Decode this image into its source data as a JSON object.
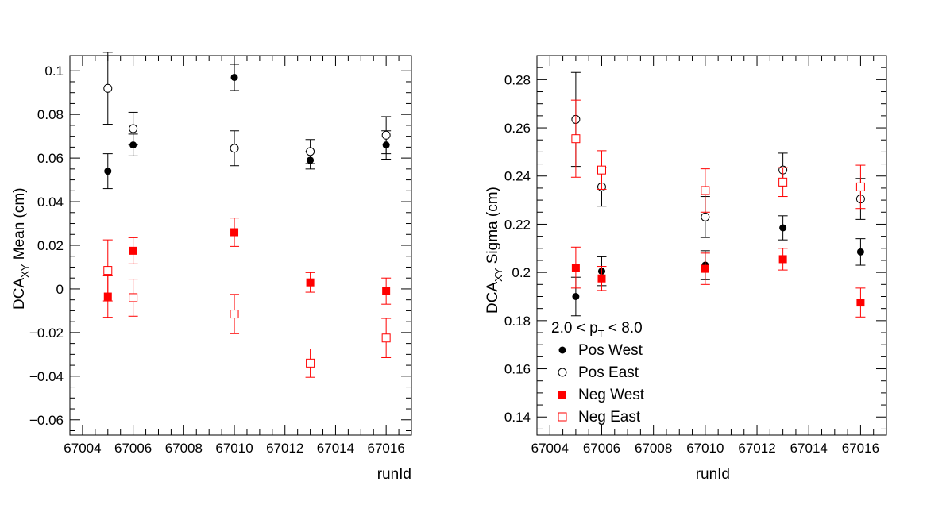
{
  "colors": {
    "pos": "#000000",
    "neg": "#ff0000"
  },
  "chart_data": [
    {
      "type": "scatter",
      "xlabel": "runId",
      "ylabel_main": "DCA",
      "ylabel_sub": "XY",
      "ylabel_rest": " Mean (cm)",
      "xlim": [
        67003.5,
        67017
      ],
      "ylim": [
        -0.067,
        0.107
      ],
      "x_ticks": [
        67004,
        67006,
        67008,
        67010,
        67012,
        67014,
        67016
      ],
      "x_tick_labels": [
        "67004",
        "67006",
        "67008",
        "67010",
        "67012",
        "67014",
        "67016"
      ],
      "y_ticks": [
        -0.06,
        -0.04,
        -0.02,
        0,
        0.02,
        0.04,
        0.06,
        0.08,
        0.1
      ],
      "y_tick_labels": [
        "−0.06",
        "−0.04",
        "−0.02",
        "0",
        "0.02",
        "0.04",
        "0.06",
        "0.08",
        "0.1"
      ],
      "series": [
        {
          "name": "Pos West",
          "marker": "filled-circle",
          "color": "#000000",
          "x": [
            67005,
            67006,
            67010,
            67013,
            67016
          ],
          "y": [
            0.054,
            0.066,
            0.097,
            0.059,
            0.066
          ],
          "err": [
            0.008,
            0.005,
            0.006,
            0.004,
            0.0065
          ]
        },
        {
          "name": "Pos East",
          "marker": "open-circle",
          "color": "#000000",
          "x": [
            67005,
            67006,
            67010,
            67013,
            67016
          ],
          "y": [
            0.092,
            0.0735,
            0.0645,
            0.063,
            0.0705
          ],
          "err": [
            0.0165,
            0.0075,
            0.008,
            0.0055,
            0.0085
          ]
        },
        {
          "name": "Neg West",
          "marker": "filled-square",
          "color": "#ff0000",
          "x": [
            67005,
            67006,
            67010,
            67013,
            67016
          ],
          "y": [
            -0.0035,
            0.0175,
            0.026,
            0.003,
            -0.001
          ],
          "err": [
            0.0095,
            0.006,
            0.0065,
            0.0045,
            0.006
          ]
        },
        {
          "name": "Neg East",
          "marker": "open-square",
          "color": "#ff0000",
          "x": [
            67005,
            67006,
            67010,
            67013,
            67016
          ],
          "y": [
            0.0085,
            -0.004,
            -0.0115,
            -0.034,
            -0.0225
          ],
          "err": [
            0.014,
            0.0085,
            0.009,
            0.0065,
            0.009
          ]
        }
      ]
    },
    {
      "type": "scatter",
      "xlabel": "runId",
      "ylabel_main": "DCA",
      "ylabel_sub": "XY",
      "ylabel_rest": " Sigma (cm)",
      "xlim": [
        67003.5,
        67017
      ],
      "ylim": [
        0.1325,
        0.29
      ],
      "x_ticks": [
        67004,
        67006,
        67008,
        67010,
        67012,
        67014,
        67016
      ],
      "x_tick_labels": [
        "67004",
        "67006",
        "67008",
        "67010",
        "67012",
        "67014",
        "67016"
      ],
      "y_ticks": [
        0.14,
        0.16,
        0.18,
        0.2,
        0.22,
        0.24,
        0.26,
        0.28
      ],
      "y_tick_labels": [
        "0.14",
        "0.16",
        "0.18",
        "0.2",
        "0.22",
        "0.24",
        "0.26",
        "0.28"
      ],
      "legend": {
        "placement": "bottom-left",
        "title_main": "2.0 < p",
        "title_sub": "T",
        "title_rest": " < 8.0",
        "entries": [
          "Pos West",
          "Pos East",
          "Neg West",
          "Neg East"
        ]
      },
      "series": [
        {
          "name": "Pos West",
          "marker": "filled-circle",
          "color": "#000000",
          "x": [
            67005,
            67006,
            67010,
            67013,
            67016
          ],
          "y": [
            0.19,
            0.2005,
            0.203,
            0.2185,
            0.2085
          ],
          "err": [
            0.008,
            0.006,
            0.006,
            0.005,
            0.0055
          ]
        },
        {
          "name": "Pos East",
          "marker": "open-circle",
          "color": "#000000",
          "x": [
            67005,
            67006,
            67010,
            67013,
            67016
          ],
          "y": [
            0.2635,
            0.2355,
            0.223,
            0.2425,
            0.2305
          ],
          "err": [
            0.0195,
            0.008,
            0.0085,
            0.007,
            0.0085
          ]
        },
        {
          "name": "Neg West",
          "marker": "filled-square",
          "color": "#ff0000",
          "x": [
            67005,
            67006,
            67010,
            67013,
            67016
          ],
          "y": [
            0.202,
            0.1975,
            0.2015,
            0.2055,
            0.1875
          ],
          "err": [
            0.0085,
            0.005,
            0.0065,
            0.0045,
            0.006
          ]
        },
        {
          "name": "Neg East",
          "marker": "open-square",
          "color": "#ff0000",
          "x": [
            67005,
            67006,
            67010,
            67013,
            67016
          ],
          "y": [
            0.2555,
            0.2425,
            0.234,
            0.2375,
            0.2355
          ],
          "err": [
            0.016,
            0.008,
            0.009,
            0.006,
            0.009
          ]
        }
      ]
    }
  ]
}
